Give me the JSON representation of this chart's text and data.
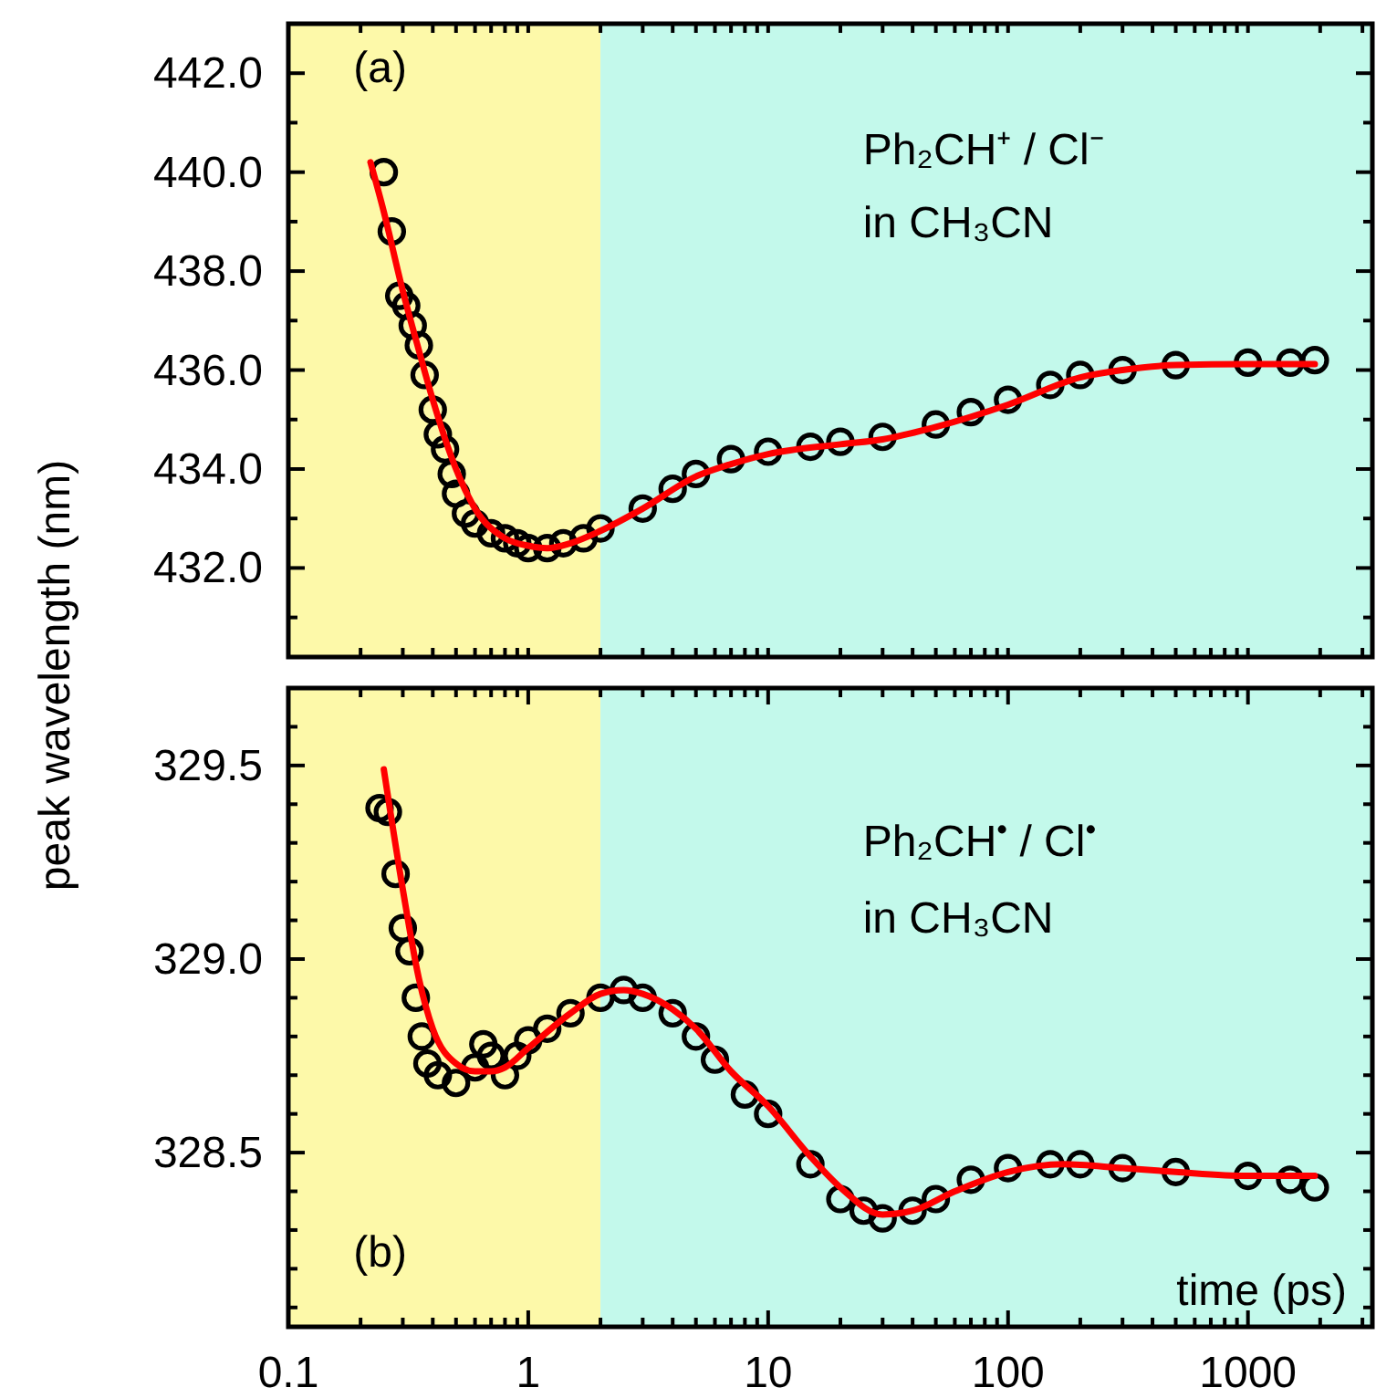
{
  "chart_data": [
    {
      "type": "scatter",
      "ylabel": "peak wavelength (nm)",
      "annotations": [
        "(a)",
        "Ph₂CH⁺ / Cl⁻",
        "in CH₃CN"
      ],
      "log": "x",
      "tick_labels": "y",
      "grid": false,
      "line_style": "solid",
      "xlim": [
        0.1,
        3300
      ],
      "xticks": [
        {
          "value": 0.1,
          "label": null
        },
        {
          "value": 0.2,
          "label": null
        },
        {
          "value": 0.3,
          "label": null
        },
        {
          "value": 0.4,
          "label": null
        },
        {
          "value": 0.5,
          "label": null
        },
        {
          "value": 0.6,
          "label": null
        },
        {
          "value": 0.7,
          "label": null
        },
        {
          "value": 0.8,
          "label": null
        },
        {
          "value": 0.9,
          "label": null
        },
        {
          "value": 1,
          "label": null
        },
        {
          "value": 2,
          "label": null
        },
        {
          "value": 3,
          "label": null
        },
        {
          "value": 4,
          "label": null
        },
        {
          "value": 5,
          "label": null
        },
        {
          "value": 6,
          "label": null
        },
        {
          "value": 7,
          "label": null
        },
        {
          "value": 8,
          "label": null
        },
        {
          "value": 9,
          "label": null
        },
        {
          "value": 10,
          "label": null
        },
        {
          "value": 20,
          "label": null
        },
        {
          "value": 30,
          "label": null
        },
        {
          "value": 40,
          "label": null
        },
        {
          "value": 50,
          "label": null
        },
        {
          "value": 60,
          "label": null
        },
        {
          "value": 70,
          "label": null
        },
        {
          "value": 80,
          "label": null
        },
        {
          "value": 90,
          "label": null
        },
        {
          "value": 100,
          "label": null
        },
        {
          "value": 200,
          "label": null
        },
        {
          "value": 300,
          "label": null
        },
        {
          "value": 400,
          "label": null
        },
        {
          "value": 500,
          "label": null
        },
        {
          "value": 600,
          "label": null
        },
        {
          "value": 700,
          "label": null
        },
        {
          "value": 800,
          "label": null
        },
        {
          "value": 900,
          "label": null
        },
        {
          "value": 1000,
          "label": null
        },
        {
          "value": 2000,
          "label": null
        },
        {
          "value": 3000,
          "label": null
        }
      ],
      "ylim": [
        430.2,
        443
      ],
      "yticks": [
        {
          "value": 431,
          "label": null
        },
        {
          "value": 432,
          "label": "432.0"
        },
        {
          "value": 433,
          "label": null
        },
        {
          "value": 434,
          "label": "434.0"
        },
        {
          "value": 435,
          "label": null
        },
        {
          "value": 436,
          "label": "436.0"
        },
        {
          "value": 437,
          "label": null
        },
        {
          "value": 438,
          "label": "438.0"
        },
        {
          "value": 439,
          "label": null
        },
        {
          "value": 440,
          "label": "440.0"
        },
        {
          "value": 441,
          "label": null
        },
        {
          "value": 442,
          "label": "442.0"
        }
      ],
      "bands": [
        {
          "axis": "x",
          "from": 0.1,
          "to": 2,
          "color": "#fdf9a9"
        },
        {
          "axis": "x",
          "from": 2,
          "to": 3300,
          "color": "#c3f9eb"
        }
      ],
      "series": [
        {
          "marker": "circle",
          "color": "#000000",
          "x": [
            0.25,
            0.27,
            0.29,
            0.31,
            0.33,
            0.35,
            0.37,
            0.4,
            0.42,
            0.45,
            0.48,
            0.5,
            0.55,
            0.6,
            0.7,
            0.8,
            0.9,
            1,
            1.2,
            1.4,
            1.7,
            2,
            3,
            4,
            5,
            7,
            10,
            15,
            20,
            30,
            50,
            70,
            100,
            150,
            200,
            300,
            500,
            1000,
            1500,
            1900
          ],
          "values": [
            440.0,
            438.8,
            437.5,
            437.3,
            436.9,
            436.5,
            435.9,
            435.2,
            434.7,
            434.4,
            433.9,
            433.5,
            433.1,
            432.9,
            432.7,
            432.6,
            432.5,
            432.4,
            432.4,
            432.5,
            432.6,
            432.8,
            433.2,
            433.6,
            433.9,
            434.2,
            434.35,
            434.45,
            434.55,
            434.65,
            434.9,
            435.15,
            435.4,
            435.7,
            435.9,
            436.0,
            436.1,
            436.15,
            436.15,
            436.2
          ]
        },
        {
          "type": "line",
          "color": "#ff0000",
          "x": [
            0.22,
            0.25,
            0.3,
            0.35,
            0.4,
            0.5,
            0.6,
            0.8,
            1,
            1.2,
            1.5,
            2,
            3,
            5,
            7,
            10,
            20,
            30,
            50,
            100,
            200,
            300,
            500,
            1000,
            1900
          ],
          "values": [
            440.2,
            439.2,
            437.6,
            436.4,
            435.4,
            434.0,
            433.2,
            432.6,
            432.45,
            432.4,
            432.5,
            432.75,
            433.2,
            433.85,
            434.1,
            434.3,
            434.5,
            434.6,
            434.85,
            435.3,
            435.85,
            436.0,
            436.1,
            436.12,
            436.12
          ]
        }
      ]
    },
    {
      "type": "scatter",
      "xlabel": "time (ps)",
      "annotations": [
        "(b)",
        "Ph₂CH$^{•}$ / Cl$^{•}$",
        "in CH₃CN"
      ],
      "log": "x",
      "grid": false,
      "line_style": "solid",
      "xlim": [
        0.1,
        3300
      ],
      "xticks": [
        {
          "value": 0.1,
          "label": "0.1"
        },
        {
          "value": 0.2,
          "label": null
        },
        {
          "value": 0.3,
          "label": null
        },
        {
          "value": 0.4,
          "label": null
        },
        {
          "value": 0.5,
          "label": null
        },
        {
          "value": 0.6,
          "label": null
        },
        {
          "value": 0.7,
          "label": null
        },
        {
          "value": 0.8,
          "label": null
        },
        {
          "value": 0.9,
          "label": null
        },
        {
          "value": 1,
          "label": "1"
        },
        {
          "value": 2,
          "label": null
        },
        {
          "value": 3,
          "label": null
        },
        {
          "value": 4,
          "label": null
        },
        {
          "value": 5,
          "label": null
        },
        {
          "value": 6,
          "label": null
        },
        {
          "value": 7,
          "label": null
        },
        {
          "value": 8,
          "label": null
        },
        {
          "value": 9,
          "label": null
        },
        {
          "value": 10,
          "label": "10"
        },
        {
          "value": 20,
          "label": null
        },
        {
          "value": 30,
          "label": null
        },
        {
          "value": 40,
          "label": null
        },
        {
          "value": 50,
          "label": null
        },
        {
          "value": 60,
          "label": null
        },
        {
          "value": 70,
          "label": null
        },
        {
          "value": 80,
          "label": null
        },
        {
          "value": 90,
          "label": null
        },
        {
          "value": 100,
          "label": "100"
        },
        {
          "value": 200,
          "label": null
        },
        {
          "value": 300,
          "label": null
        },
        {
          "value": 400,
          "label": null
        },
        {
          "value": 500,
          "label": null
        },
        {
          "value": 600,
          "label": null
        },
        {
          "value": 700,
          "label": null
        },
        {
          "value": 800,
          "label": null
        },
        {
          "value": 900,
          "label": null
        },
        {
          "value": 1000,
          "label": "1000"
        },
        {
          "value": 2000,
          "label": null
        },
        {
          "value": 3000,
          "label": null
        }
      ],
      "ylim": [
        328.05,
        329.7
      ],
      "yticks": [
        {
          "value": 328.1,
          "label": null
        },
        {
          "value": 328.2,
          "label": null
        },
        {
          "value": 328.3,
          "label": null
        },
        {
          "value": 328.4,
          "label": null
        },
        {
          "value": 328.5,
          "label": "328.5"
        },
        {
          "value": 328.6,
          "label": null
        },
        {
          "value": 328.7,
          "label": null
        },
        {
          "value": 328.8,
          "label": null
        },
        {
          "value": 328.9,
          "label": null
        },
        {
          "value": 329,
          "label": "329.0"
        },
        {
          "value": 329.1,
          "label": null
        },
        {
          "value": 329.2,
          "label": null
        },
        {
          "value": 329.3,
          "label": null
        },
        {
          "value": 329.4,
          "label": null
        },
        {
          "value": 329.5,
          "label": "329.5"
        },
        {
          "value": 329.6,
          "label": null
        },
        {
          "value": 329.7,
          "label": null
        }
      ],
      "bands": [
        {
          "axis": "x",
          "from": 0.1,
          "to": 2,
          "color": "#fdf9a9"
        },
        {
          "axis": "x",
          "from": 2,
          "to": 3300,
          "color": "#c3f9eb"
        }
      ],
      "series": [
        {
          "marker": "circle",
          "color": "#000000",
          "x": [
            0.24,
            0.26,
            0.28,
            0.3,
            0.32,
            0.34,
            0.36,
            0.38,
            0.42,
            0.5,
            0.6,
            0.65,
            0.7,
            0.8,
            0.9,
            1,
            1.2,
            1.5,
            2,
            2.5,
            3,
            4,
            5,
            6,
            8,
            10,
            15,
            20,
            25,
            30,
            40,
            50,
            70,
            100,
            150,
            200,
            300,
            500,
            1000,
            1500,
            1900
          ],
          "values": [
            329.39,
            329.38,
            329.22,
            329.08,
            329.02,
            328.9,
            328.8,
            328.73,
            328.7,
            328.68,
            328.72,
            328.78,
            328.75,
            328.7,
            328.75,
            328.79,
            328.82,
            328.86,
            328.9,
            328.92,
            328.9,
            328.86,
            328.8,
            328.74,
            328.65,
            328.6,
            328.47,
            328.38,
            328.35,
            328.33,
            328.35,
            328.38,
            328.43,
            328.46,
            328.47,
            328.47,
            328.46,
            328.45,
            328.44,
            328.43,
            328.41
          ]
        },
        {
          "type": "line",
          "color": "#ff0000",
          "x": [
            0.25,
            0.3,
            0.35,
            0.4,
            0.5,
            0.6,
            0.7,
            0.8,
            1,
            1.5,
            2,
            2.5,
            3,
            4,
            5,
            7,
            10,
            15,
            20,
            30,
            40,
            60,
            100,
            170,
            300,
            500,
            1000,
            1900
          ],
          "values": [
            329.49,
            329.18,
            328.95,
            328.82,
            328.73,
            328.71,
            328.71,
            328.72,
            328.77,
            328.86,
            328.91,
            328.92,
            328.91,
            328.87,
            328.82,
            328.71,
            328.62,
            328.49,
            328.41,
            328.34,
            328.35,
            328.4,
            328.45,
            328.47,
            328.46,
            328.45,
            328.44,
            328.44
          ]
        }
      ]
    }
  ]
}
